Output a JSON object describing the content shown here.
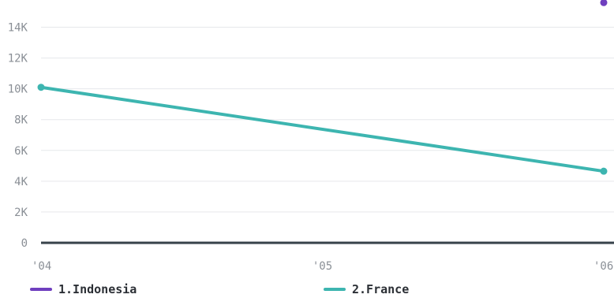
{
  "chart_data": {
    "type": "line",
    "x": [
      "'04",
      "'05",
      "'06"
    ],
    "y_ticks": [
      {
        "value": 0,
        "label": "0"
      },
      {
        "value": 2000,
        "label": "2K"
      },
      {
        "value": 4000,
        "label": "4K"
      },
      {
        "value": 6000,
        "label": "6K"
      },
      {
        "value": 8000,
        "label": "8K"
      },
      {
        "value": 10000,
        "label": "10K"
      },
      {
        "value": 12000,
        "label": "12K"
      },
      {
        "value": 14000,
        "label": "14K"
      }
    ],
    "ylim": [
      0,
      15000
    ],
    "grid": true,
    "legend_position": "bottom",
    "series": [
      {
        "name": "1.Indonesia",
        "color": "#6f3fbf",
        "values": [
          null,
          null,
          15600
        ]
      },
      {
        "name": "2.France",
        "color": "#3db5b0",
        "values": [
          10100,
          null,
          4650
        ]
      }
    ]
  }
}
